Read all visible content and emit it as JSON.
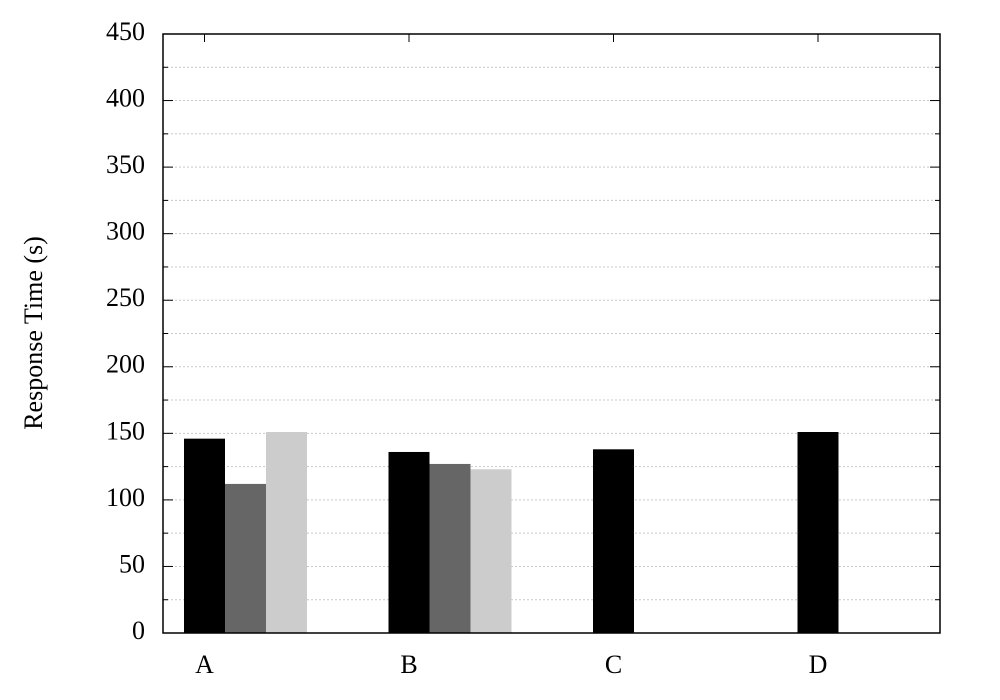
{
  "chart_data": {
    "type": "bar",
    "y_label": "Response Time (s)",
    "categories": [
      "A",
      "B",
      "C",
      "D"
    ],
    "series": [
      {
        "color": "#000000",
        "values": [
          146,
          136,
          138,
          151
        ]
      },
      {
        "color": "#666666",
        "values": [
          112,
          127,
          null,
          null
        ]
      },
      {
        "color": "#cccccc",
        "values": [
          151,
          123,
          null,
          null
        ]
      }
    ],
    "ylim": [
      0,
      450
    ],
    "yticks": [
      0,
      50,
      100,
      150,
      200,
      250,
      300,
      350,
      400,
      450
    ],
    "yminorticks": [
      25,
      75,
      125,
      175,
      225,
      275,
      325,
      375,
      425
    ],
    "grid": true
  }
}
